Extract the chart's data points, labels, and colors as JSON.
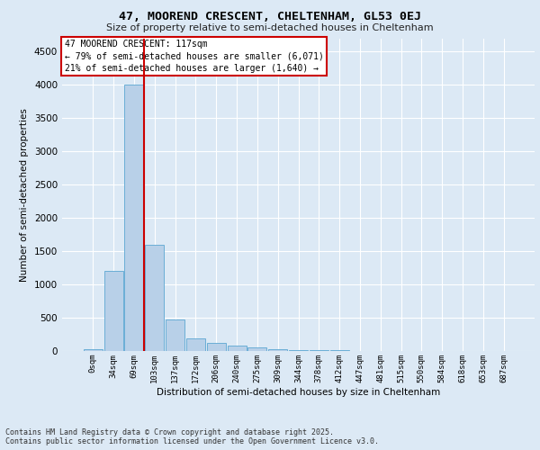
{
  "title": "47, MOOREND CRESCENT, CHELTENHAM, GL53 0EJ",
  "subtitle": "Size of property relative to semi-detached houses in Cheltenham",
  "xlabel": "Distribution of semi-detached houses by size in Cheltenham",
  "ylabel": "Number of semi-detached properties",
  "categories": [
    "0sqm",
    "34sqm",
    "69sqm",
    "103sqm",
    "137sqm",
    "172sqm",
    "206sqm",
    "240sqm",
    "275sqm",
    "309sqm",
    "344sqm",
    "378sqm",
    "412sqm",
    "447sqm",
    "481sqm",
    "515sqm",
    "550sqm",
    "584sqm",
    "618sqm",
    "653sqm",
    "687sqm"
  ],
  "bar_values": [
    30,
    1200,
    4000,
    1600,
    480,
    190,
    120,
    80,
    50,
    30,
    20,
    15,
    10,
    5,
    3,
    2,
    1,
    1,
    0,
    0,
    0
  ],
  "bar_color": "#b8d0e8",
  "bar_edge_color": "#6baed6",
  "property_line_x": 2.5,
  "property_size": "117sqm",
  "property_name": "47 MOOREND CRESCENT",
  "pct_smaller": 79,
  "n_smaller": "6,071",
  "pct_larger": 21,
  "n_larger": "1,640",
  "line_color": "#cc0000",
  "annotation_box_color": "#cc0000",
  "yticks": [
    0,
    500,
    1000,
    1500,
    2000,
    2500,
    3000,
    3500,
    4000,
    4500
  ],
  "ylim": [
    0,
    4700
  ],
  "background_color": "#dce9f5",
  "plot_bg_color": "#dce9f5",
  "grid_color": "#ffffff",
  "footer_line1": "Contains HM Land Registry data © Crown copyright and database right 2025.",
  "footer_line2": "Contains public sector information licensed under the Open Government Licence v3.0."
}
